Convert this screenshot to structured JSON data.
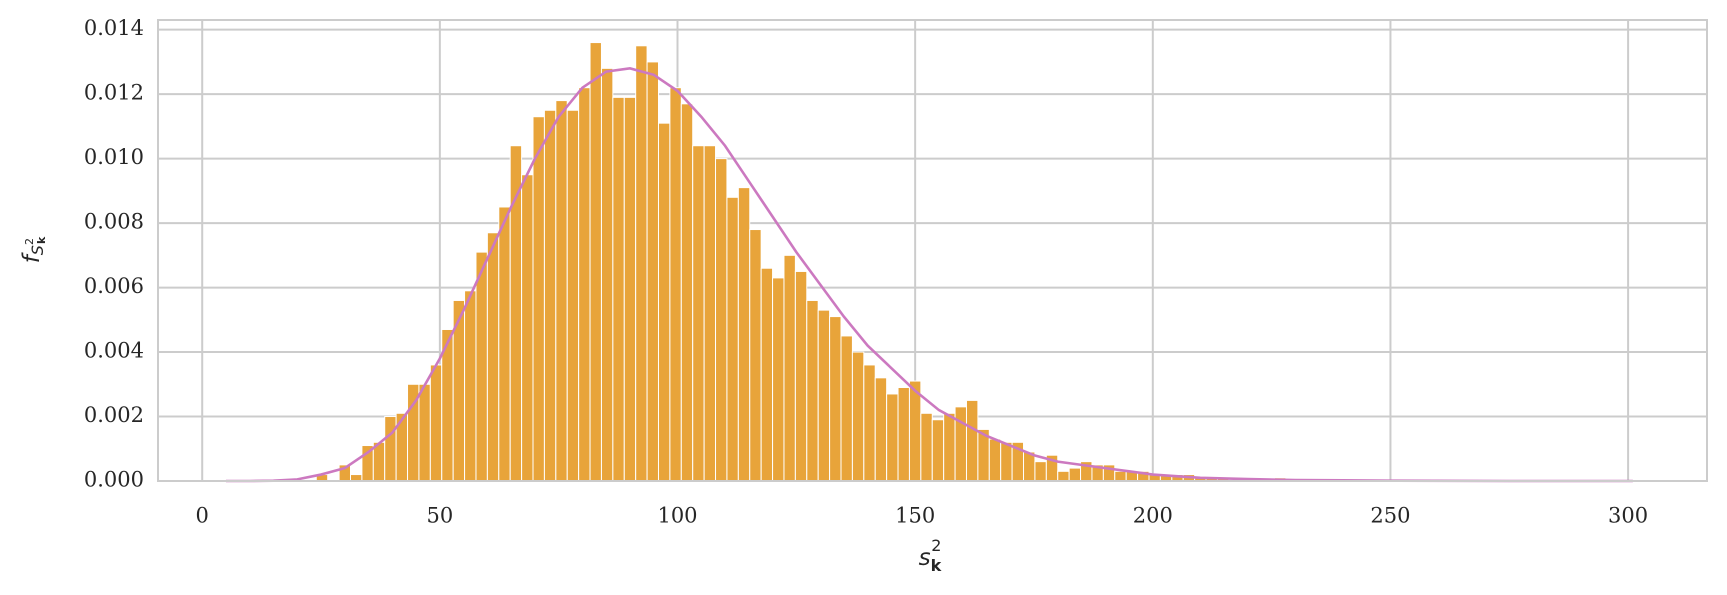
{
  "chart_data": {
    "type": "histogram",
    "x_label": {
      "base": "s",
      "sub": "k",
      "sup": "2"
    },
    "y_label": {
      "base": "f",
      "sub": "S",
      "sub_sup": "2",
      "sub_sub": "k"
    },
    "bins": [
      24,
      26.4,
      28.8,
      31.2,
      33.6,
      36,
      38.4,
      40.8,
      43.2,
      45.6,
      48,
      50.4,
      52.8,
      55.2,
      57.6,
      60,
      62.4,
      64.8,
      67.2,
      69.6,
      72,
      74.4,
      76.8,
      79.2,
      81.6,
      84,
      86.4,
      88.8,
      91.2,
      93.6,
      96,
      98.4,
      100.8,
      103.2,
      105.6,
      108,
      110.4,
      112.8,
      115.2,
      117.6,
      120,
      122.4,
      124.8,
      127.2,
      129.6,
      132,
      134.4,
      136.8,
      139.2,
      141.6,
      144,
      146.4,
      148.8,
      151.2,
      153.6,
      156,
      158.4,
      160.8,
      163.2,
      165.6,
      168,
      170.4,
      172.8,
      175.2,
      177.6,
      180,
      182.4,
      184.8,
      187.2,
      189.6,
      192,
      194.4,
      196.8,
      199.2,
      201.6,
      204,
      206.4,
      208.8,
      211.2,
      213.6,
      216,
      218.4,
      220.8,
      223.2,
      225.6,
      228
    ],
    "values": [
      0.0002,
      0,
      0.0005,
      0.0002,
      0.0011,
      0.0012,
      0.002,
      0.0021,
      0.003,
      0.003,
      0.0036,
      0.0047,
      0.0056,
      0.0059,
      0.0071,
      0.0077,
      0.0085,
      0.0104,
      0.0095,
      0.0113,
      0.0115,
      0.0118,
      0.0115,
      0.0122,
      0.0136,
      0.0128,
      0.0119,
      0.0119,
      0.0135,
      0.013,
      0.0111,
      0.0122,
      0.0117,
      0.0104,
      0.0104,
      0.01,
      0.0088,
      0.0091,
      0.0078,
      0.0066,
      0.0063,
      0.007,
      0.0065,
      0.0056,
      0.0053,
      0.0051,
      0.0045,
      0.004,
      0.0036,
      0.0032,
      0.0027,
      0.0029,
      0.0031,
      0.0021,
      0.0019,
      0.0021,
      0.0023,
      0.0025,
      0.0016,
      0.0013,
      0.0012,
      0.0012,
      0.0009,
      0.0006,
      0.0008,
      0.0003,
      0.0004,
      0.0006,
      0.0005,
      0.0005,
      0.0003,
      0.0003,
      0.0003,
      0.0002,
      0.0002,
      0.0002,
      0.0002,
      0.0001,
      0.0001,
      0.0001,
      0,
      0.0001,
      0,
      0,
      0.0001
    ],
    "color": "#e8a43a",
    "curve": {
      "color": "#cc79c0",
      "x": [
        5,
        10,
        15,
        20,
        25,
        30,
        35,
        40,
        45,
        50,
        55,
        60,
        65,
        70,
        75,
        80,
        85,
        90,
        95,
        100,
        105,
        110,
        115,
        120,
        125,
        130,
        135,
        140,
        145,
        150,
        155,
        160,
        165,
        170,
        175,
        180,
        185,
        190,
        195,
        200,
        210,
        220,
        230,
        240,
        250,
        275,
        301
      ],
      "y": [
        0,
        0,
        1e-05,
        5e-05,
        0.0002,
        0.0004,
        0.0009,
        0.0015,
        0.0025,
        0.0038,
        0.0053,
        0.0069,
        0.0085,
        0.01,
        0.0113,
        0.0122,
        0.0127,
        0.0128,
        0.0126,
        0.0121,
        0.0113,
        0.0104,
        0.0093,
        0.0082,
        0.0071,
        0.0061,
        0.0051,
        0.0042,
        0.0035,
        0.0028,
        0.0022,
        0.0018,
        0.0014,
        0.0011,
        0.0008,
        0.0006,
        0.0005,
        0.0004,
        0.0003,
        0.0002,
        0.0001,
        6e-05,
        3e-05,
        2e-05,
        1e-05,
        0,
        0
      ]
    },
    "xlim": [
      -9.3,
      316.6
    ],
    "ylim": [
      0,
      0.0143
    ],
    "xticks": [
      0,
      50,
      100,
      150,
      200,
      250,
      300
    ],
    "yticks": [
      {
        "value": 0,
        "label": "0.000"
      },
      {
        "value": 0.002,
        "label": "0.002"
      },
      {
        "value": 0.004,
        "label": "0.004"
      },
      {
        "value": 0.006,
        "label": "0.006"
      },
      {
        "value": 0.008,
        "label": "0.008"
      },
      {
        "value": 0.01,
        "label": "0.010"
      },
      {
        "value": 0.012,
        "label": "0.012"
      },
      {
        "value": 0.014,
        "label": "0.014"
      }
    ],
    "grid": true
  }
}
